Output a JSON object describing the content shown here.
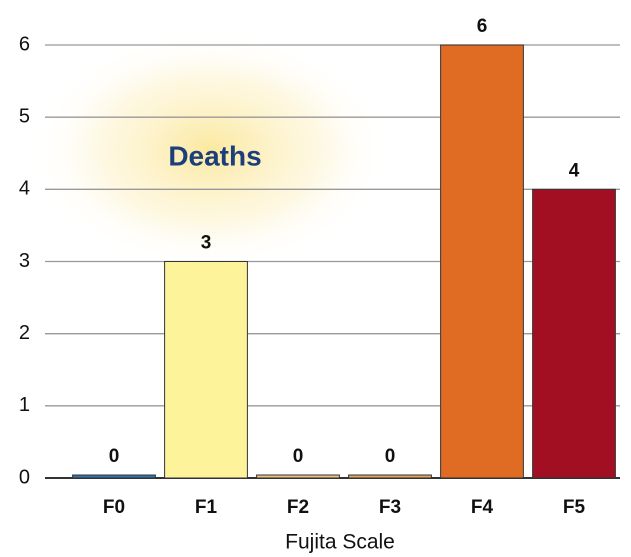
{
  "chart_data": {
    "type": "bar",
    "annotation": "Deaths",
    "x_label": "Fujita Scale",
    "categories": [
      "F0",
      "F1",
      "F2",
      "F3",
      "F4",
      "F5"
    ],
    "values": [
      0,
      3,
      0,
      0,
      6,
      4
    ],
    "colors": [
      "#2f73b0",
      "#fdf39a",
      "#e9c57a",
      "#e3a757",
      "#e06b22",
      "#a30f22"
    ],
    "ylim": [
      0,
      6
    ],
    "yticks": [
      0,
      1,
      2,
      3,
      4,
      5,
      6
    ],
    "grid": true
  }
}
